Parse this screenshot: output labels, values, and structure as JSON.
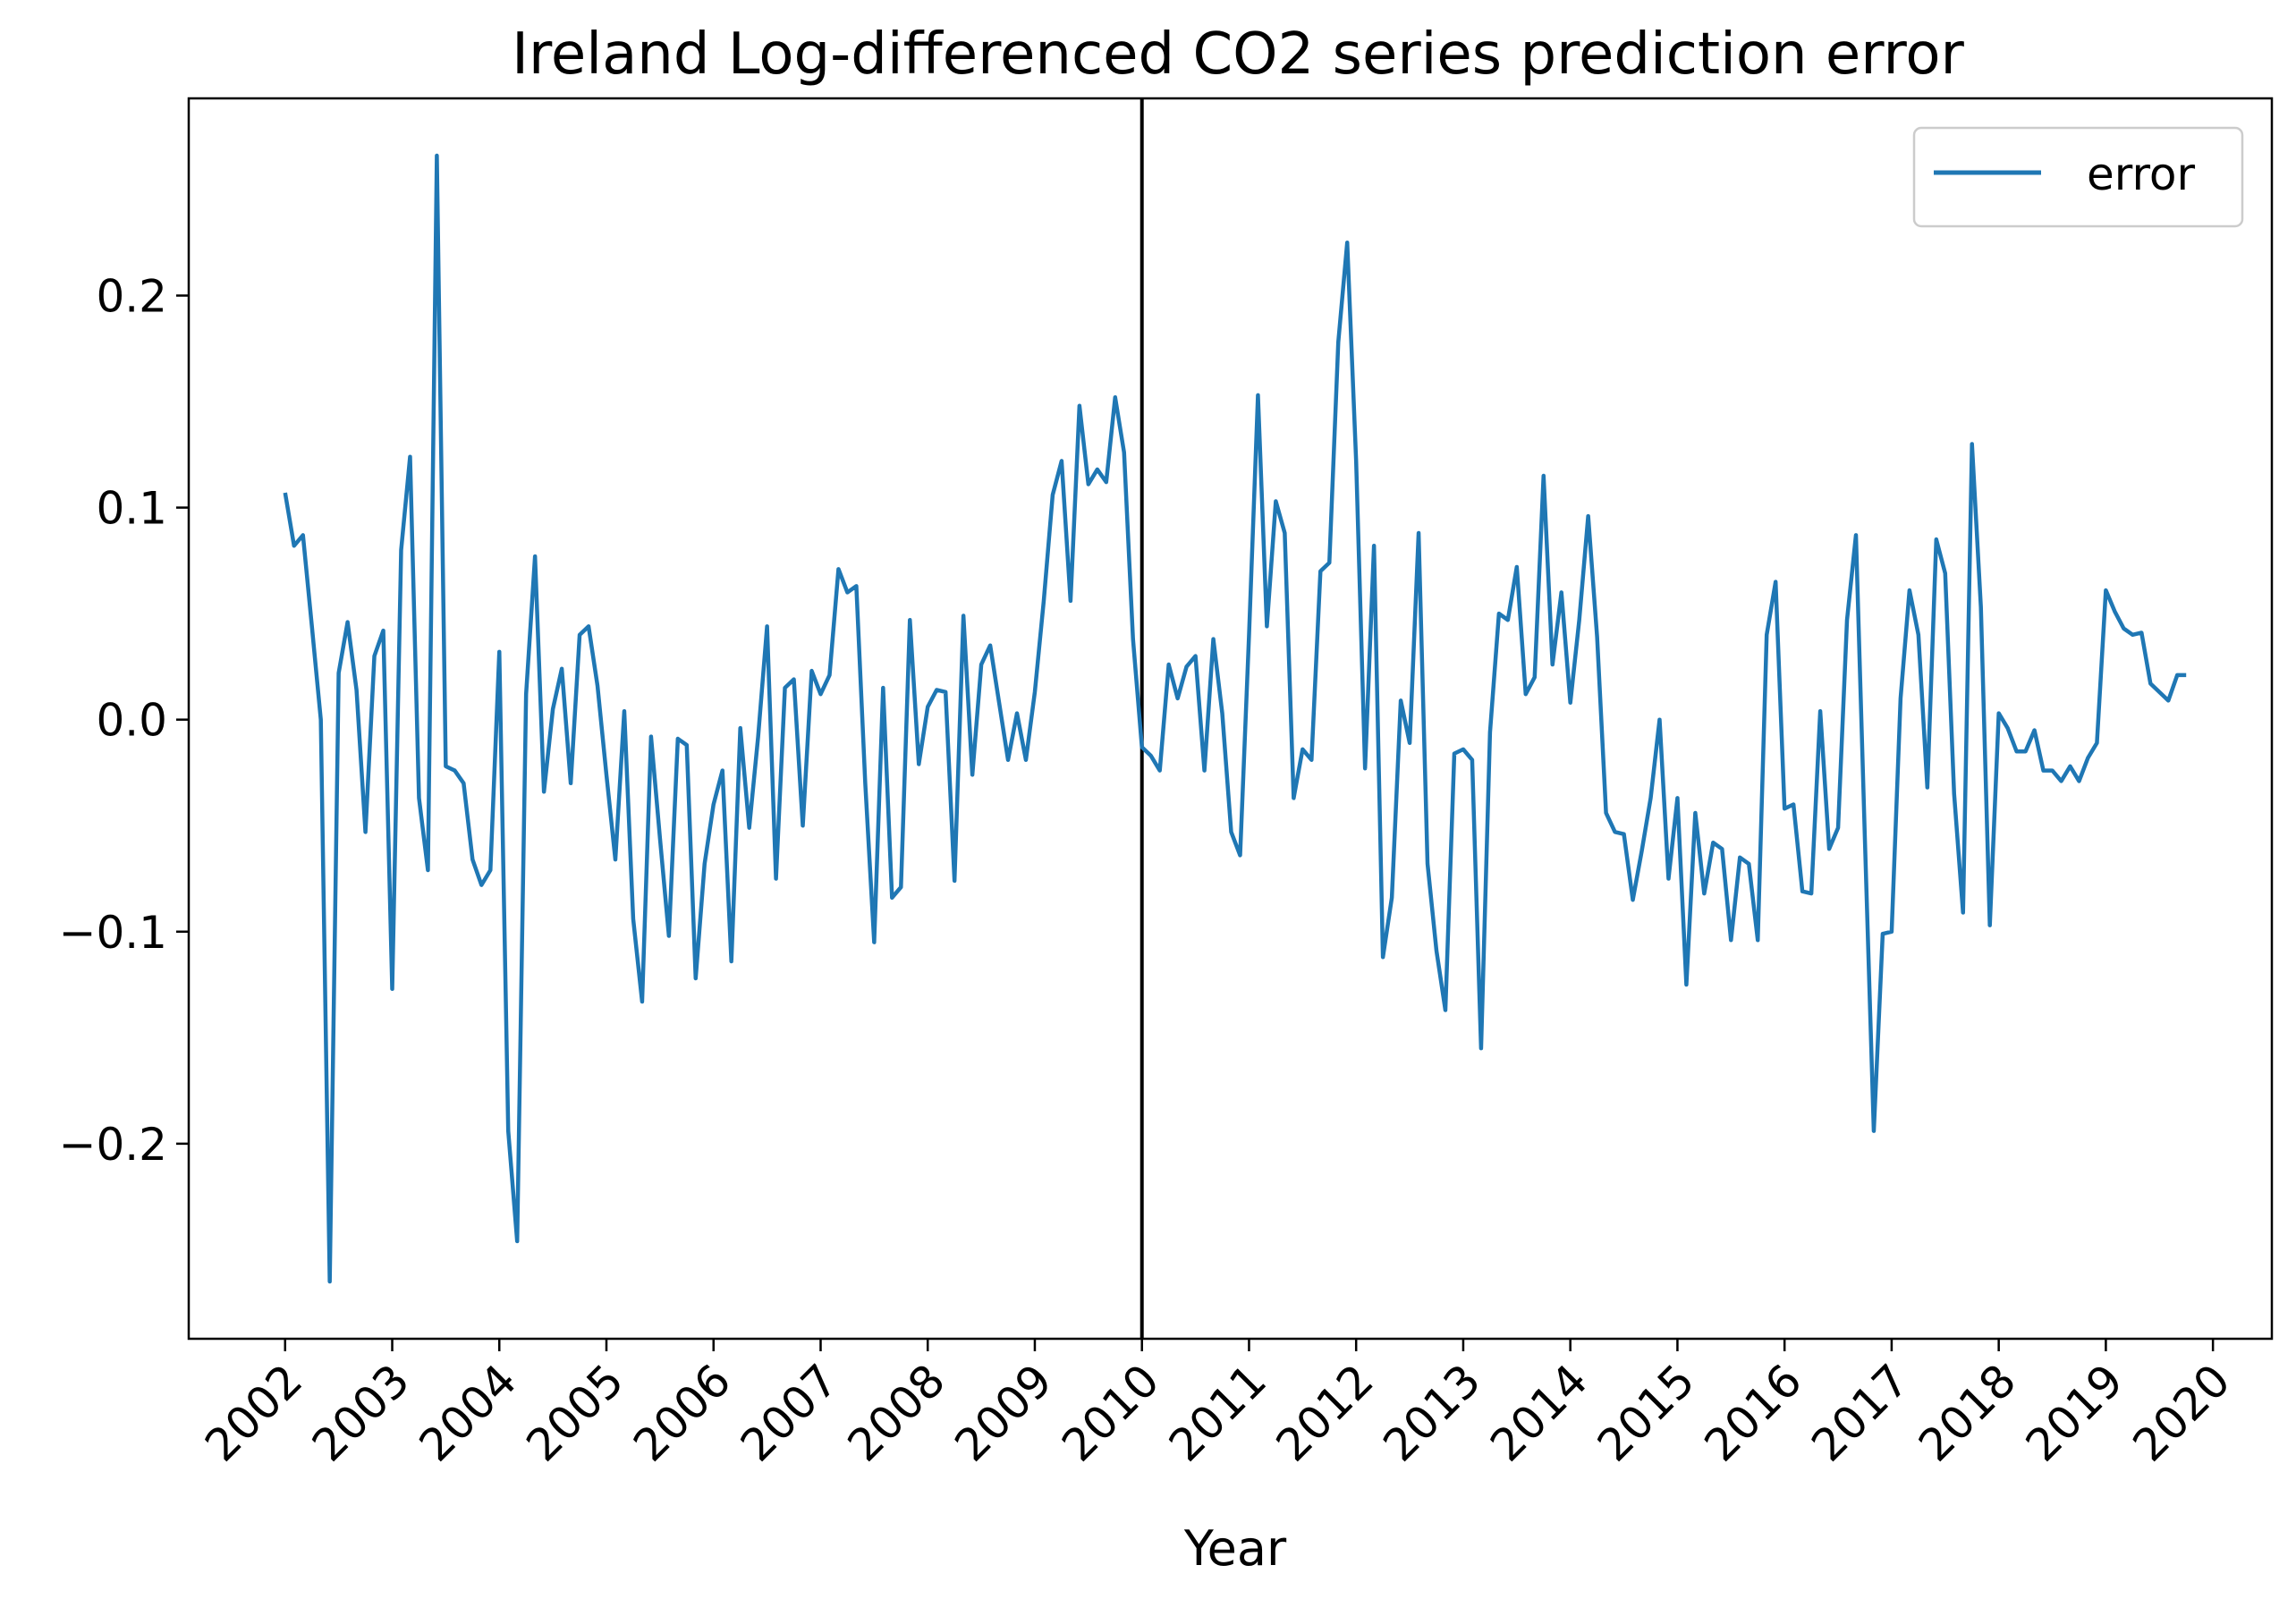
{
  "chart_data": {
    "type": "line",
    "title": "Ireland Log-differenced CO2 series prediction error",
    "xlabel": "Year",
    "ylabel": "",
    "xlim": [
      2001.1,
      2020.55
    ],
    "ylim": [
      -0.292,
      0.293
    ],
    "x_ticks": [
      2002,
      2003,
      2004,
      2005,
      2006,
      2007,
      2008,
      2009,
      2010,
      2011,
      2012,
      2013,
      2014,
      2015,
      2016,
      2017,
      2018,
      2019,
      2020
    ],
    "y_ticks": [
      -0.2,
      -0.1,
      0.0,
      0.1,
      0.2
    ],
    "y_tick_labels": [
      "−0.2",
      "−0.1",
      "0.0",
      "0.1",
      "0.2"
    ],
    "vline_x": 2010,
    "legend_position": "upper right",
    "series": [
      {
        "name": "error",
        "color": "#1f77b4",
        "x_start": 2002,
        "x_step_months": 1,
        "values": [
          0.107,
          0.082,
          0.087,
          0.044,
          0.0,
          -0.265,
          0.022,
          0.046,
          0.014,
          -0.053,
          0.03,
          0.042,
          -0.127,
          0.08,
          0.124,
          -0.037,
          -0.071,
          0.266,
          -0.022,
          -0.024,
          -0.03,
          -0.066,
          -0.078,
          -0.071,
          0.032,
          -0.194,
          -0.246,
          0.012,
          0.077,
          -0.034,
          0.005,
          0.024,
          -0.03,
          0.04,
          0.044,
          0.016,
          -0.026,
          -0.066,
          0.004,
          -0.094,
          -0.133,
          -0.008,
          -0.056,
          -0.102,
          -0.009,
          -0.012,
          -0.122,
          -0.068,
          -0.04,
          -0.024,
          -0.114,
          -0.004,
          -0.051,
          -0.008,
          0.044,
          -0.075,
          0.015,
          0.019,
          -0.05,
          0.023,
          0.012,
          0.021,
          0.071,
          0.06,
          0.063,
          -0.03,
          -0.105,
          0.015,
          -0.084,
          -0.079,
          0.047,
          -0.021,
          0.006,
          0.014,
          0.013,
          -0.076,
          0.049,
          -0.026,
          0.026,
          0.035,
          0.008,
          -0.019,
          0.003,
          -0.019,
          0.013,
          0.056,
          0.106,
          0.122,
          0.056,
          0.148,
          0.111,
          0.118,
          0.112,
          0.152,
          0.126,
          0.038,
          -0.013,
          -0.017,
          -0.024,
          0.026,
          0.01,
          0.025,
          0.03,
          -0.024,
          0.038,
          0.003,
          -0.053,
          -0.064,
          0.04,
          0.153,
          0.044,
          0.103,
          0.088,
          -0.037,
          -0.014,
          -0.019,
          0.07,
          0.074,
          0.178,
          0.225,
          0.122,
          -0.023,
          0.082,
          -0.112,
          -0.084,
          0.009,
          -0.011,
          0.088,
          -0.068,
          -0.109,
          -0.137,
          -0.016,
          -0.014,
          -0.019,
          -0.155,
          -0.006,
          0.05,
          0.047,
          0.072,
          0.012,
          0.02,
          0.115,
          0.026,
          0.06,
          0.008,
          0.047,
          0.096,
          0.039,
          -0.044,
          -0.053,
          -0.054,
          -0.085,
          -0.062,
          -0.037,
          0.0,
          -0.075,
          -0.037,
          -0.125,
          -0.044,
          -0.082,
          -0.058,
          -0.061,
          -0.104,
          -0.065,
          -0.068,
          -0.104,
          0.04,
          0.065,
          -0.042,
          -0.04,
          -0.081,
          -0.082,
          0.004,
          -0.061,
          -0.051,
          0.047,
          0.087,
          -0.056,
          -0.194,
          -0.101,
          -0.1,
          0.01,
          0.061,
          0.04,
          -0.032,
          0.085,
          0.069,
          -0.035,
          -0.091,
          0.13,
          0.053,
          -0.097,
          0.003,
          -0.004,
          -0.015,
          -0.015,
          -0.005,
          -0.024,
          -0.024,
          -0.029,
          -0.022,
          -0.029,
          -0.018,
          -0.011,
          0.061,
          0.051,
          0.043,
          0.04,
          0.041,
          0.017,
          0.013,
          0.009,
          0.021,
          0.021
        ]
      }
    ]
  }
}
